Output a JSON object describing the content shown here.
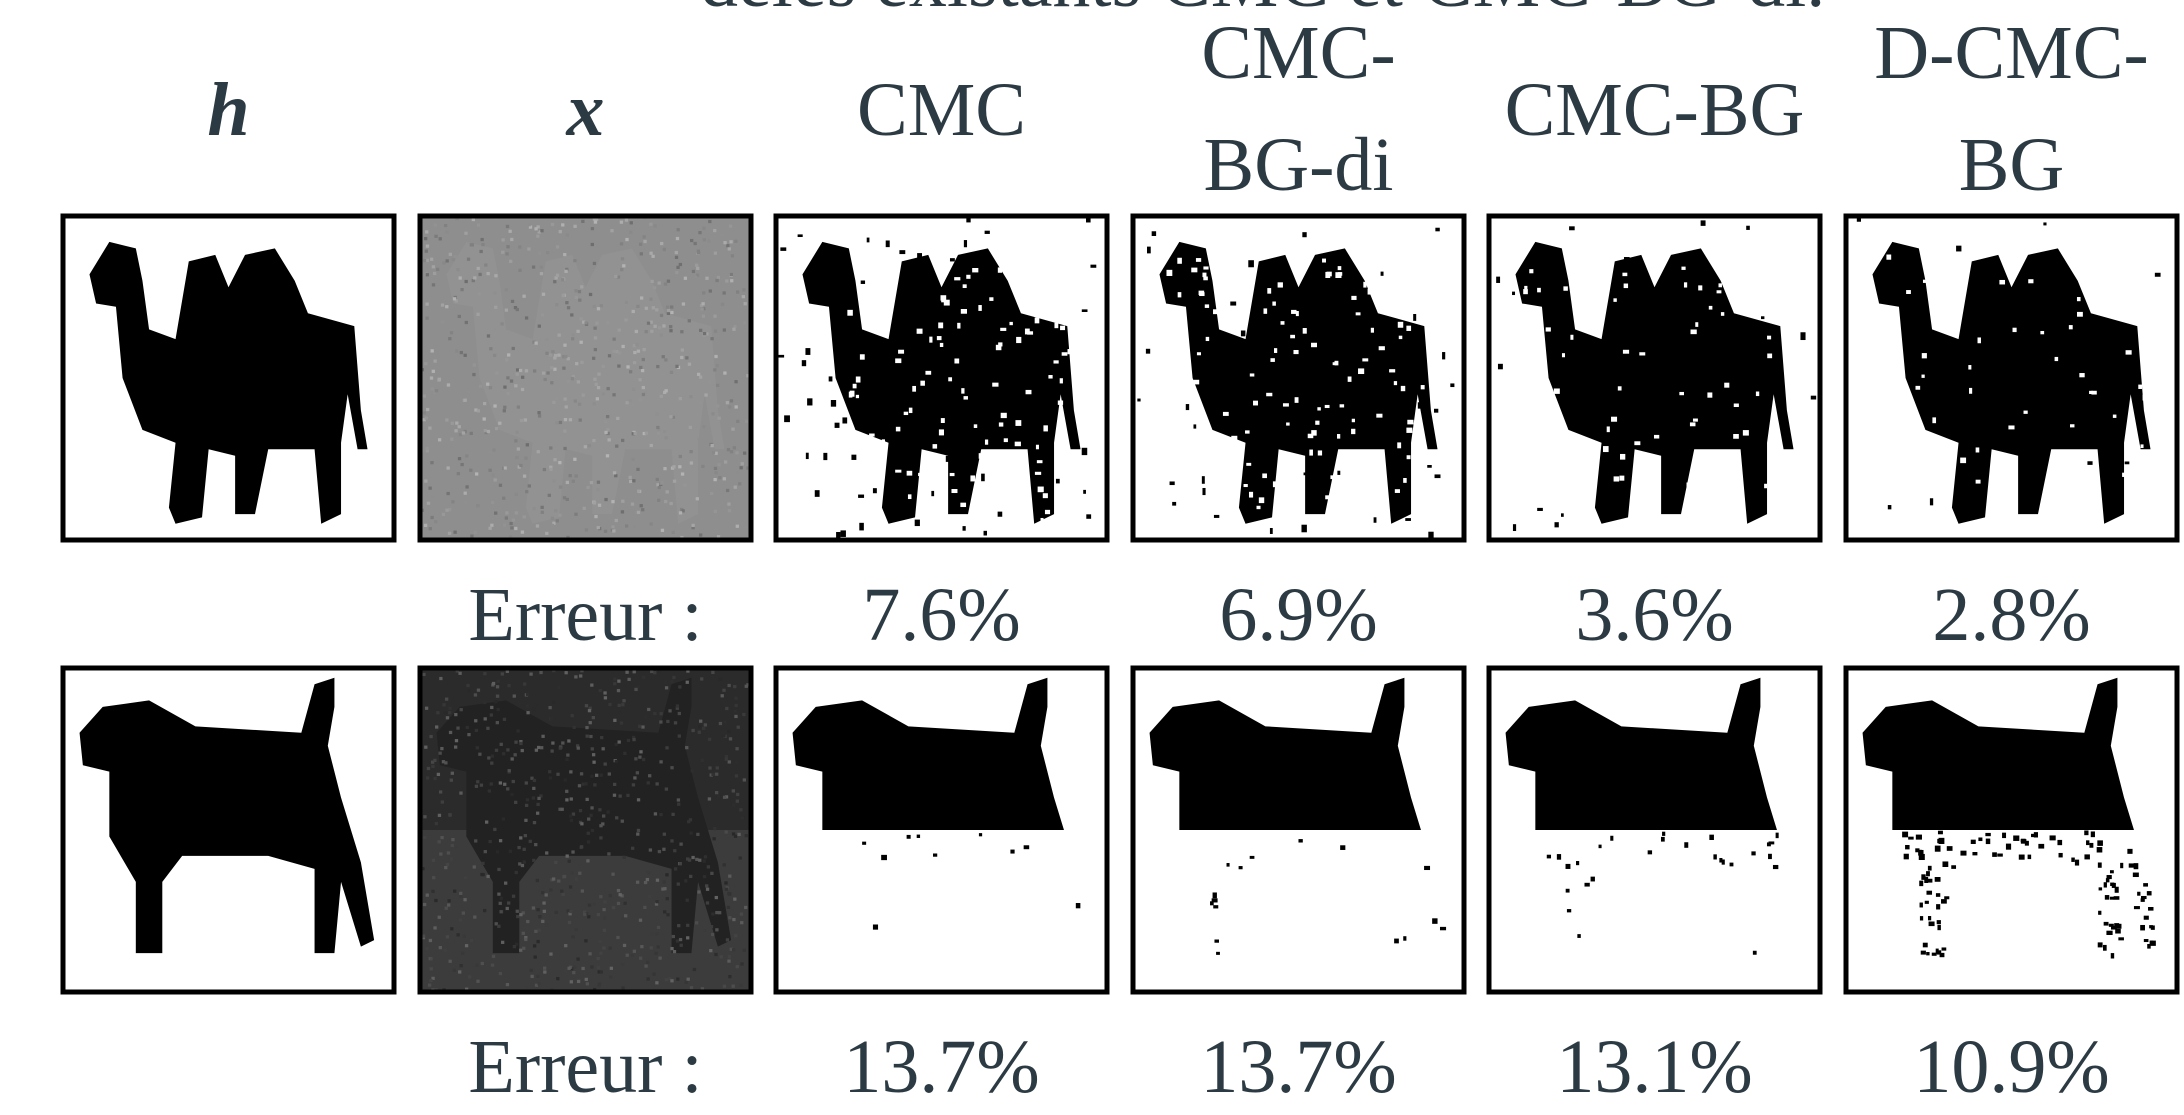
{
  "top_text": "dèles existants CMC et CMC-BG-di.",
  "columns": [
    {
      "header": [
        "h"
      ]
    },
    {
      "header": [
        "x"
      ]
    },
    {
      "header": [
        "CMC"
      ]
    },
    {
      "header": [
        "CMC-",
        "BG-di"
      ]
    },
    {
      "header": [
        "CMC-BG"
      ]
    },
    {
      "header": [
        "D-CMC-",
        "BG"
      ]
    }
  ],
  "rows": [
    {
      "error_label": "Erreur :",
      "errors": [
        "7.6%",
        "6.9%",
        "3.6%",
        "2.8%"
      ]
    },
    {
      "error_label": "Erreur :",
      "errors": [
        "13.7%",
        "13.7%",
        "13.1%",
        "10.9%"
      ]
    }
  ]
}
